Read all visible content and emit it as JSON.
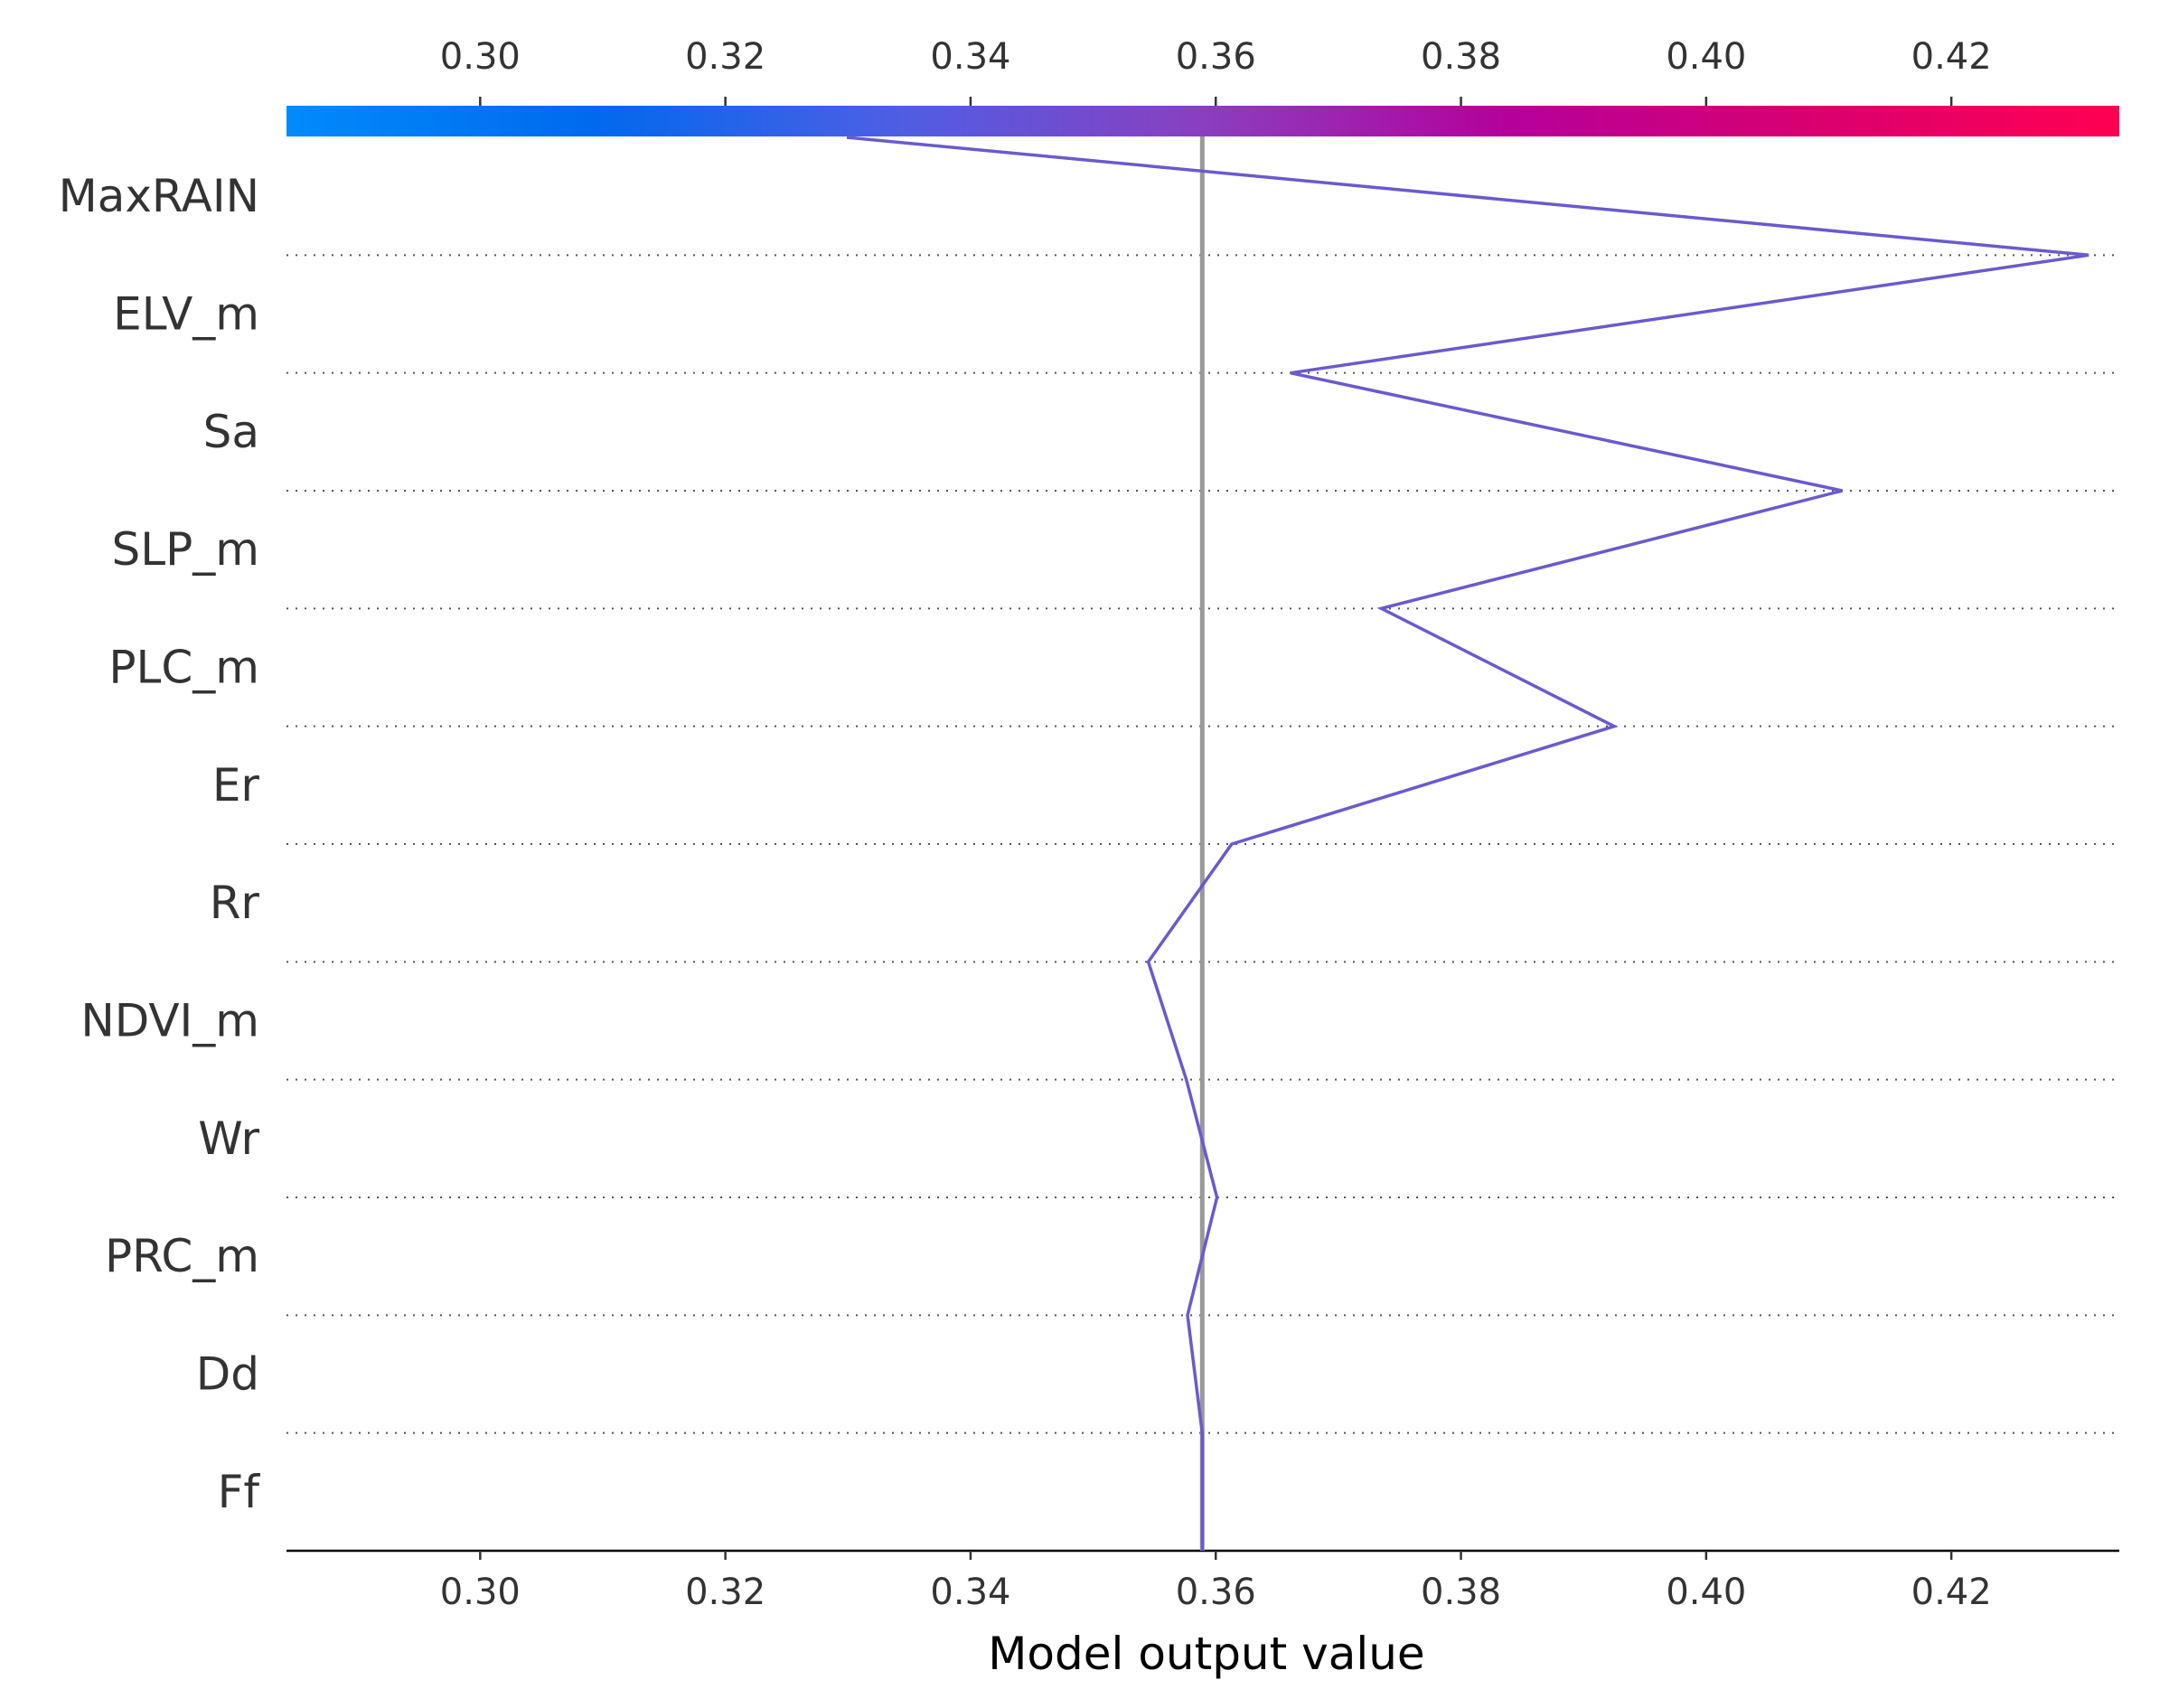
{
  "chart_data": {
    "type": "line",
    "chart_kind": "decision-plot",
    "xlabel": "Model output value",
    "xlim": [
      0.2842,
      0.4337
    ],
    "x_ticks": [
      "0.30",
      "0.32",
      "0.34",
      "0.36",
      "0.38",
      "0.40",
      "0.42"
    ],
    "x_tick_values": [
      0.3,
      0.32,
      0.34,
      0.36,
      0.38,
      0.4,
      0.42
    ],
    "base_value": 0.3589,
    "colorbar": {
      "position": "top",
      "colors": [
        "#008bfb",
        "#0069ee",
        "#4e5ee4",
        "#8a3fc0",
        "#b5009b",
        "#d9006f",
        "#ff0052"
      ]
    },
    "line_color": "#6a5acd",
    "base_line_color": "#999999",
    "grid": "dotted horizontal",
    "features": [
      "MaxRAIN",
      "ELV_m",
      "Sa",
      "SLP_m",
      "PLC_m",
      "Er",
      "Rr",
      "NDVI_m",
      "Wr",
      "PRC_m",
      "Dd",
      "Ff"
    ],
    "path_x": [
      0.3299,
      0.4312,
      0.3661,
      0.4111,
      0.3735,
      0.3925,
      0.3613,
      0.3545,
      0.3576,
      0.3601,
      0.3577,
      0.3589
    ]
  }
}
